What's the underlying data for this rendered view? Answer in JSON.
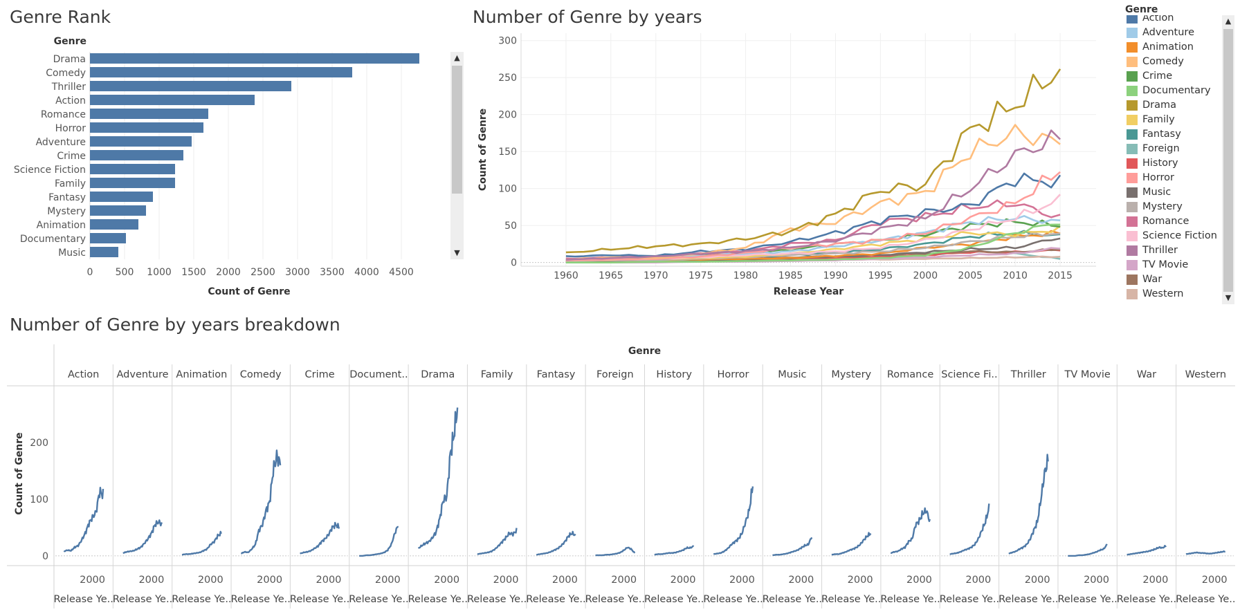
{
  "titles": {
    "rank": "Genre Rank",
    "years": "Number of Genre by years",
    "breakdown": "Number of Genre by years breakdown"
  },
  "legend": {
    "title": "Genre"
  },
  "icons": {
    "scroll_up": "chevron-up-icon",
    "scroll_down": "chevron-down-icon"
  },
  "chart_data": [
    {
      "type": "bar",
      "orientation": "horizontal",
      "title": "Genre Rank",
      "ylabel": "Genre",
      "xlabel": "Count of Genre",
      "color": "#4e79a7",
      "xlim": [
        0,
        5000
      ],
      "xticks": [
        0,
        500,
        1000,
        1500,
        2000,
        2500,
        3000,
        3500,
        4000,
        4500
      ],
      "categories": [
        "Drama",
        "Comedy",
        "Thriller",
        "Action",
        "Romance",
        "Horror",
        "Adventure",
        "Crime",
        "Science Fiction",
        "Family",
        "Fantasy",
        "Mystery",
        "Animation",
        "Documentary",
        "Music"
      ],
      "values": [
        4760,
        3790,
        2910,
        2380,
        1710,
        1640,
        1470,
        1350,
        1230,
        1230,
        910,
        810,
        700,
        520,
        410
      ]
    },
    {
      "type": "line",
      "title": "Number of Genre by years",
      "xlabel": "Release Year",
      "ylabel": "Count of Genre",
      "xlim": [
        1955,
        2019
      ],
      "ylim": [
        -5,
        310
      ],
      "xticks": [
        1960,
        1965,
        1970,
        1975,
        1980,
        1985,
        1990,
        1995,
        2000,
        2005,
        2010,
        2015
      ],
      "yticks": [
        0,
        50,
        100,
        150,
        200,
        250,
        300
      ],
      "legend_position": "right",
      "x_anchors": [
        1960,
        1965,
        1970,
        1975,
        1980,
        1985,
        1990,
        1995,
        2000,
        2005,
        2010,
        2015
      ],
      "series": [
        {
          "name": "Action",
          "color": "#4e79a7",
          "values": [
            8,
            10,
            9,
            15,
            18,
            28,
            40,
            57,
            68,
            77,
            113,
            108
          ]
        },
        {
          "name": "Adventure",
          "color": "#a0cbe8",
          "values": [
            5,
            7,
            8,
            9,
            12,
            15,
            22,
            30,
            40,
            55,
            60,
            55
          ]
        },
        {
          "name": "Animation",
          "color": "#f28e2b",
          "values": [
            2,
            3,
            3,
            4,
            5,
            6,
            9,
            12,
            20,
            25,
            35,
            40
          ]
        },
        {
          "name": "Comedy",
          "color": "#ffbe7d",
          "values": [
            4,
            7,
            6,
            12,
            20,
            45,
            55,
            80,
            95,
            150,
            175,
            162
          ]
        },
        {
          "name": "Crime",
          "color": "#59a14f",
          "values": [
            4,
            6,
            7,
            9,
            13,
            17,
            25,
            30,
            38,
            50,
            55,
            50
          ]
        },
        {
          "name": "Documentary",
          "color": "#8cd17d",
          "values": [
            0,
            0,
            1,
            1,
            2,
            3,
            4,
            6,
            10,
            20,
            40,
            55
          ]
        },
        {
          "name": "Drama",
          "color": "#b6992d",
          "values": [
            13,
            18,
            22,
            25,
            32,
            42,
            65,
            98,
            105,
            180,
            213,
            262
          ]
        },
        {
          "name": "Family",
          "color": "#f1ce63",
          "values": [
            3,
            4,
            5,
            6,
            8,
            12,
            18,
            25,
            32,
            40,
            38,
            45
          ]
        },
        {
          "name": "Fantasy",
          "color": "#499894",
          "values": [
            2,
            3,
            4,
            5,
            7,
            10,
            13,
            18,
            25,
            35,
            40,
            36
          ]
        },
        {
          "name": "Foreign",
          "color": "#86bcb6",
          "values": [
            1,
            1,
            1,
            2,
            2,
            3,
            4,
            6,
            10,
            15,
            12,
            5
          ]
        },
        {
          "name": "History",
          "color": "#e15759",
          "values": [
            2,
            3,
            3,
            4,
            5,
            5,
            6,
            8,
            10,
            14,
            14,
            17
          ]
        },
        {
          "name": "Horror",
          "color": "#ff9d9a",
          "values": [
            3,
            4,
            5,
            8,
            13,
            20,
            25,
            30,
            40,
            60,
            80,
            125
          ]
        },
        {
          "name": "Music",
          "color": "#79706e",
          "values": [
            1,
            2,
            2,
            3,
            4,
            6,
            8,
            10,
            14,
            18,
            20,
            34
          ]
        },
        {
          "name": "Mystery",
          "color": "#bab0ac",
          "values": [
            2,
            3,
            3,
            5,
            7,
            10,
            12,
            15,
            20,
            28,
            35,
            40
          ]
        },
        {
          "name": "Romance",
          "color": "#d37295",
          "values": [
            5,
            7,
            8,
            12,
            15,
            25,
            30,
            55,
            62,
            75,
            80,
            60
          ]
        },
        {
          "name": "Science Fiction",
          "color": "#fabfd2",
          "values": [
            3,
            4,
            5,
            7,
            10,
            12,
            15,
            20,
            30,
            45,
            60,
            85
          ]
        },
        {
          "name": "Thriller",
          "color": "#b07aa1",
          "values": [
            4,
            6,
            8,
            12,
            15,
            20,
            30,
            45,
            60,
            100,
            145,
            170
          ]
        },
        {
          "name": "TV Movie",
          "color": "#d4a6c8",
          "values": [
            0,
            0,
            0,
            1,
            1,
            2,
            3,
            5,
            7,
            10,
            12,
            20
          ]
        },
        {
          "name": "War",
          "color": "#9d7660",
          "values": [
            2,
            3,
            4,
            5,
            6,
            7,
            8,
            10,
            12,
            15,
            14,
            18
          ]
        },
        {
          "name": "Western",
          "color": "#d7b5a6",
          "values": [
            3,
            4,
            5,
            6,
            5,
            5,
            4,
            4,
            5,
            6,
            7,
            8
          ]
        }
      ]
    },
    {
      "type": "line",
      "title": "Number of Genre by years breakdown",
      "ylabel": "Count of Genre",
      "column_header": "Genre",
      "column_axis_title": "Release Ye..",
      "xlim": [
        1950,
        2025
      ],
      "ylim": [
        -5,
        295
      ],
      "xticks": [
        2000
      ],
      "yticks": [
        0,
        100,
        200
      ],
      "color": "#4e79a7",
      "panels": [
        {
          "label": "Action",
          "values": [
            8,
            10,
            9,
            15,
            18,
            28,
            40,
            57,
            68,
            77,
            113,
            108
          ]
        },
        {
          "label": "Adventure",
          "values": [
            5,
            7,
            8,
            9,
            12,
            15,
            22,
            30,
            40,
            55,
            60,
            55
          ]
        },
        {
          "label": "Animation",
          "values": [
            2,
            3,
            3,
            4,
            5,
            6,
            9,
            12,
            20,
            25,
            35,
            40
          ]
        },
        {
          "label": "Comedy",
          "values": [
            4,
            7,
            6,
            12,
            20,
            45,
            55,
            80,
            95,
            150,
            175,
            162
          ]
        },
        {
          "label": "Crime",
          "values": [
            4,
            6,
            7,
            9,
            13,
            17,
            25,
            30,
            38,
            50,
            55,
            50
          ]
        },
        {
          "label": "Document..",
          "values": [
            0,
            0,
            1,
            1,
            2,
            3,
            4,
            6,
            10,
            20,
            40,
            55
          ]
        },
        {
          "label": "Drama",
          "values": [
            13,
            18,
            22,
            25,
            32,
            42,
            65,
            98,
            105,
            180,
            213,
            262
          ]
        },
        {
          "label": "Family",
          "values": [
            3,
            4,
            5,
            6,
            8,
            12,
            18,
            25,
            32,
            40,
            38,
            45
          ]
        },
        {
          "label": "Fantasy",
          "values": [
            2,
            3,
            4,
            5,
            7,
            10,
            13,
            18,
            25,
            35,
            40,
            36
          ]
        },
        {
          "label": "Foreign",
          "values": [
            1,
            1,
            1,
            2,
            2,
            3,
            4,
            6,
            10,
            15,
            12,
            5
          ]
        },
        {
          "label": "History",
          "values": [
            2,
            3,
            3,
            4,
            5,
            5,
            6,
            8,
            10,
            14,
            14,
            17
          ]
        },
        {
          "label": "Horror",
          "values": [
            3,
            4,
            5,
            8,
            13,
            20,
            25,
            30,
            40,
            60,
            80,
            125
          ]
        },
        {
          "label": "Music",
          "values": [
            1,
            2,
            2,
            3,
            4,
            6,
            8,
            10,
            14,
            18,
            20,
            34
          ]
        },
        {
          "label": "Mystery",
          "values": [
            2,
            3,
            3,
            5,
            7,
            10,
            12,
            15,
            20,
            28,
            35,
            40
          ]
        },
        {
          "label": "Romance",
          "values": [
            5,
            7,
            8,
            12,
            15,
            25,
            30,
            55,
            62,
            75,
            80,
            60
          ]
        },
        {
          "label": "Science Fi..",
          "values": [
            3,
            4,
            5,
            7,
            10,
            12,
            15,
            20,
            30,
            45,
            60,
            85
          ]
        },
        {
          "label": "Thriller",
          "values": [
            4,
            6,
            8,
            12,
            15,
            20,
            30,
            45,
            60,
            100,
            145,
            170
          ]
        },
        {
          "label": "TV Movie",
          "values": [
            0,
            0,
            0,
            1,
            1,
            2,
            3,
            5,
            7,
            10,
            12,
            20
          ]
        },
        {
          "label": "War",
          "values": [
            2,
            3,
            4,
            5,
            6,
            7,
            8,
            10,
            12,
            15,
            14,
            18
          ]
        },
        {
          "label": "Western",
          "values": [
            3,
            4,
            5,
            6,
            5,
            5,
            4,
            4,
            5,
            6,
            7,
            8
          ]
        }
      ]
    }
  ]
}
